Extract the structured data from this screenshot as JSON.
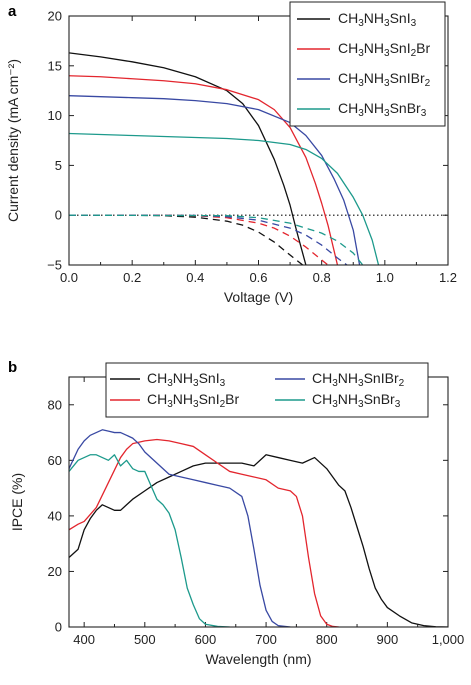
{
  "chart_data": [
    {
      "panel": "a",
      "type": "line",
      "xlabel": "Voltage (V)",
      "ylabel": "Current density (mA cm⁻²)",
      "xlim": [
        0.0,
        1.2
      ],
      "ylim": [
        -5,
        20
      ],
      "xticks": [
        "0.0",
        "0.2",
        "0.4",
        "0.6",
        "0.8",
        "1.0",
        "1.2"
      ],
      "yticks": [
        "−5",
        "0",
        "5",
        "10",
        "15",
        "20"
      ],
      "legend_position": "top-right",
      "series": [
        {
          "name": "CH3NH3SnI3",
          "color": "#111111",
          "style": "solid",
          "x": [
            0,
            0.1,
            0.2,
            0.3,
            0.4,
            0.5,
            0.55,
            0.6,
            0.65,
            0.68,
            0.7,
            0.72,
            0.75
          ],
          "y": [
            16.3,
            15.9,
            15.4,
            14.8,
            13.9,
            12.5,
            11.2,
            9.0,
            5.6,
            3.0,
            1.0,
            -1.5,
            -5
          ]
        },
        {
          "name": "CH3NH3SnI2Br",
          "color": "#e3262e",
          "style": "solid",
          "x": [
            0,
            0.1,
            0.2,
            0.3,
            0.4,
            0.5,
            0.6,
            0.65,
            0.7,
            0.75,
            0.78,
            0.8,
            0.82,
            0.85
          ],
          "y": [
            14.0,
            13.9,
            13.7,
            13.5,
            13.2,
            12.6,
            11.6,
            10.6,
            8.8,
            5.8,
            3.2,
            1.2,
            -1.0,
            -5
          ]
        },
        {
          "name": "CH3NH3SnIBr2",
          "color": "#3949a3",
          "style": "solid",
          "x": [
            0,
            0.1,
            0.2,
            0.3,
            0.4,
            0.5,
            0.6,
            0.7,
            0.75,
            0.8,
            0.84,
            0.87,
            0.9,
            0.92
          ],
          "y": [
            12.0,
            11.9,
            11.8,
            11.7,
            11.5,
            11.2,
            10.6,
            9.3,
            8.0,
            6.0,
            3.6,
            1.5,
            -1.5,
            -5
          ]
        },
        {
          "name": "CH3NH3SnBr3",
          "color": "#1d9a8c",
          "style": "solid",
          "x": [
            0,
            0.1,
            0.2,
            0.3,
            0.4,
            0.5,
            0.6,
            0.7,
            0.75,
            0.8,
            0.85,
            0.9,
            0.93,
            0.96,
            0.98
          ],
          "y": [
            8.2,
            8.1,
            8.0,
            7.9,
            7.8,
            7.7,
            7.5,
            7.1,
            6.6,
            5.7,
            4.2,
            1.8,
            0.0,
            -2.5,
            -5
          ]
        },
        {
          "name": "CH3NH3SnI3 dark",
          "color": "#111111",
          "style": "dashed",
          "x": [
            0,
            0.2,
            0.3,
            0.4,
            0.5,
            0.55,
            0.6,
            0.65,
            0.7,
            0.74
          ],
          "y": [
            0,
            0,
            -0.05,
            -0.2,
            -0.6,
            -1.0,
            -1.7,
            -2.7,
            -4.0,
            -5
          ]
        },
        {
          "name": "CH3NH3SnI2Br dark",
          "color": "#e3262e",
          "style": "dashed",
          "x": [
            0,
            0.3,
            0.4,
            0.5,
            0.6,
            0.65,
            0.7,
            0.75,
            0.8,
            0.82
          ],
          "y": [
            0,
            0,
            -0.05,
            -0.25,
            -0.8,
            -1.3,
            -2.1,
            -3.2,
            -4.5,
            -5
          ]
        },
        {
          "name": "CH3NH3SnIBr2 dark",
          "color": "#3949a3",
          "style": "dashed",
          "x": [
            0,
            0.4,
            0.5,
            0.6,
            0.7,
            0.75,
            0.8,
            0.85,
            0.88
          ],
          "y": [
            0,
            -0.02,
            -0.15,
            -0.5,
            -1.3,
            -2.0,
            -3.0,
            -4.3,
            -5
          ]
        },
        {
          "name": "CH3NH3SnBr3 dark",
          "color": "#1d9a8c",
          "style": "dashed",
          "x": [
            0,
            0.5,
            0.6,
            0.7,
            0.8,
            0.85,
            0.9,
            0.93
          ],
          "y": [
            0,
            -0.05,
            -0.25,
            -0.8,
            -1.8,
            -2.6,
            -3.8,
            -5
          ]
        }
      ],
      "reference_line": {
        "y": 0,
        "style": "dotted",
        "color": "#111111"
      }
    },
    {
      "panel": "b",
      "type": "line",
      "xlabel": "Wavelength (nm)",
      "ylabel": "IPCE (%)",
      "xlim": [
        375,
        1000
      ],
      "ylim": [
        0,
        90
      ],
      "xticks": [
        "400",
        "500",
        "600",
        "700",
        "800",
        "900",
        "1,000"
      ],
      "yticks": [
        "0",
        "20",
        "40",
        "60",
        "80"
      ],
      "legend_position": "top",
      "series": [
        {
          "name": "CH3NH3SnI3",
          "color": "#111111",
          "x": [
            375,
            390,
            400,
            410,
            420,
            430,
            440,
            450,
            460,
            470,
            480,
            500,
            520,
            540,
            560,
            580,
            600,
            620,
            640,
            660,
            680,
            700,
            720,
            740,
            760,
            780,
            800,
            820,
            830,
            840,
            850,
            860,
            870,
            880,
            890,
            900,
            920,
            940,
            960,
            980,
            1000
          ],
          "y": [
            25,
            28,
            35,
            39,
            42,
            44,
            43,
            42,
            42,
            44,
            46,
            49,
            52,
            54,
            56,
            58,
            59,
            59,
            59,
            59,
            58,
            62,
            61,
            60,
            59,
            61,
            57,
            51,
            49,
            43,
            36,
            29,
            21,
            14,
            10,
            7,
            4,
            1.5,
            0.5,
            0.1,
            0
          ]
        },
        {
          "name": "CH3NH3SnI2Br",
          "color": "#e3262e",
          "x": [
            375,
            390,
            400,
            420,
            440,
            460,
            470,
            480,
            500,
            520,
            540,
            560,
            580,
            600,
            620,
            640,
            660,
            680,
            700,
            720,
            740,
            750,
            760,
            770,
            780,
            790,
            800,
            810,
            820
          ],
          "y": [
            35,
            37,
            38,
            43,
            52,
            61,
            64,
            66,
            67,
            67.5,
            67,
            66,
            65,
            62,
            59,
            56,
            55,
            54,
            53,
            50,
            49,
            47,
            40,
            25,
            12,
            4,
            1,
            0.2,
            0
          ]
        },
        {
          "name": "CH3NH3SnIBr2",
          "color": "#3949a3",
          "x": [
            375,
            390,
            400,
            410,
            420,
            430,
            440,
            450,
            460,
            470,
            480,
            490,
            500,
            520,
            540,
            560,
            580,
            600,
            620,
            640,
            660,
            670,
            680,
            690,
            700,
            710,
            720,
            740
          ],
          "y": [
            57,
            64,
            67,
            69,
            70,
            71,
            70.5,
            70,
            70,
            69,
            68,
            66,
            63,
            59,
            55,
            54,
            53,
            52,
            51,
            50,
            47,
            40,
            28,
            15,
            6,
            2,
            0.5,
            0
          ]
        },
        {
          "name": "CH3NH3SnBr3",
          "color": "#1d9a8c",
          "x": [
            375,
            390,
            400,
            410,
            420,
            430,
            440,
            450,
            460,
            470,
            480,
            490,
            500,
            510,
            520,
            530,
            540,
            550,
            560,
            570,
            580,
            590,
            600,
            620,
            640
          ],
          "y": [
            56,
            60,
            61,
            62,
            62,
            61,
            60,
            62,
            58,
            60,
            57,
            56,
            56,
            51,
            46,
            44,
            41,
            35,
            25,
            14,
            8,
            3,
            1,
            0.2,
            0
          ]
        }
      ]
    }
  ],
  "legend_a": [
    {
      "pre": "CH",
      "s1": "3",
      "mid": "NH",
      "s2": "3",
      "post": "SnI",
      "s3": "3",
      "tail": "",
      "color": "#111111"
    },
    {
      "pre": "CH",
      "s1": "3",
      "mid": "NH",
      "s2": "3",
      "post": "SnI",
      "s3": "2",
      "tail": "Br",
      "color": "#e3262e"
    },
    {
      "pre": "CH",
      "s1": "3",
      "mid": "NH",
      "s2": "3",
      "post": "SnIBr",
      "s3": "2",
      "tail": "",
      "color": "#3949a3"
    },
    {
      "pre": "CH",
      "s1": "3",
      "mid": "NH",
      "s2": "3",
      "post": "SnBr",
      "s3": "3",
      "tail": "",
      "color": "#1d9a8c"
    }
  ],
  "labels": {
    "panel_a": "a",
    "panel_b": "b"
  }
}
